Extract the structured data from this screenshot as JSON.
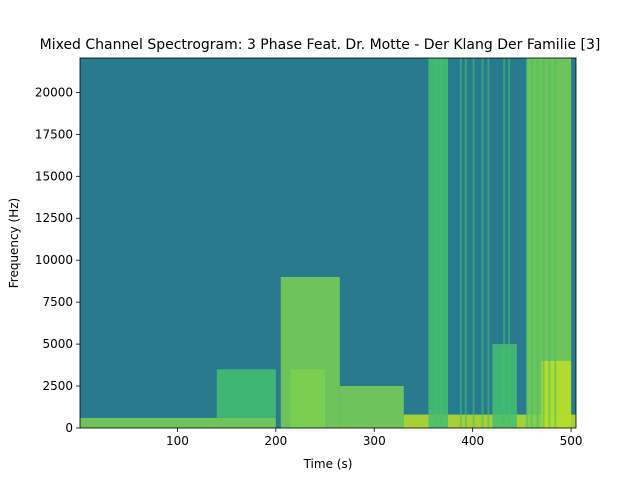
{
  "chart_data": {
    "type": "heatmap",
    "title": "Mixed Channel Spectrogram: 3 Phase Feat. Dr. Motte - Der Klang Der Familie [3]",
    "xlabel": "Time (s)",
    "ylabel": "Frequency (Hz)",
    "xlim": [
      1,
      505
    ],
    "ylim": [
      0,
      22050
    ],
    "x_ticks": [
      {
        "value": 100,
        "label": "100"
      },
      {
        "value": 200,
        "label": "200"
      },
      {
        "value": 300,
        "label": "300"
      },
      {
        "value": 400,
        "label": "400"
      },
      {
        "value": 500,
        "label": "500"
      }
    ],
    "y_ticks": [
      {
        "value": 0,
        "label": "0"
      },
      {
        "value": 2500,
        "label": "2500"
      },
      {
        "value": 5000,
        "label": "5000"
      },
      {
        "value": 7500,
        "label": "7500"
      },
      {
        "value": 10000,
        "label": "10000"
      },
      {
        "value": 12500,
        "label": "12500"
      },
      {
        "value": 15000,
        "label": "15000"
      },
      {
        "value": 17500,
        "label": "17500"
      },
      {
        "value": 20000,
        "label": "20000"
      }
    ],
    "colormap": [
      "#21908d",
      "#2a788e",
      "#22a884",
      "#44bf70",
      "#7ad151",
      "#bddf26"
    ],
    "intensity_regions": [
      {
        "t0": 1,
        "t1": 200,
        "f0": 0,
        "f1": 600,
        "level": 0.8
      },
      {
        "t0": 140,
        "t1": 200,
        "f0": 600,
        "f1": 3500,
        "level": 0.5
      },
      {
        "t0": 205,
        "t1": 265,
        "f0": 0,
        "f1": 9000,
        "level": 0.7
      },
      {
        "t0": 215,
        "t1": 250,
        "f0": 0,
        "f1": 3500,
        "level": 0.85
      },
      {
        "t0": 265,
        "t1": 330,
        "f0": 0,
        "f1": 2500,
        "level": 0.8
      },
      {
        "t0": 330,
        "t1": 505,
        "f0": 0,
        "f1": 800,
        "level": 0.9
      },
      {
        "t0": 355,
        "t1": 375,
        "f0": 0,
        "f1": 22050,
        "level": 0.6
      },
      {
        "t0": 420,
        "t1": 445,
        "f0": 0,
        "f1": 5000,
        "level": 0.65
      },
      {
        "t0": 455,
        "t1": 500,
        "f0": 0,
        "f1": 22050,
        "level": 0.75
      },
      {
        "t0": 470,
        "t1": 500,
        "f0": 0,
        "f1": 4000,
        "level": 0.9
      }
    ],
    "vertical_streaks_s": [
      363,
      368,
      388,
      393,
      401,
      410,
      416,
      432,
      437,
      455,
      460,
      466,
      472,
      478,
      484
    ],
    "grid": false
  }
}
